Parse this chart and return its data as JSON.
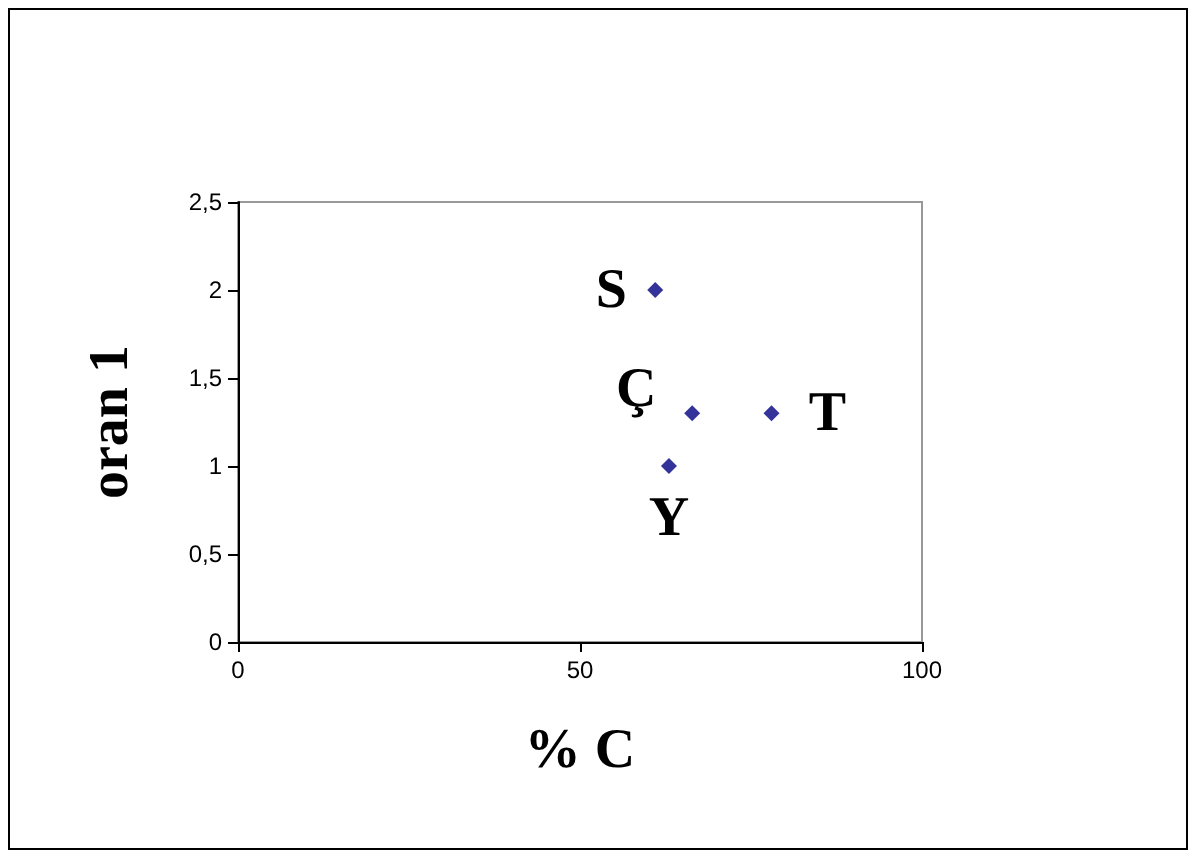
{
  "chart_data": {
    "type": "scatter",
    "xlabel": "% C",
    "ylabel": "oran 1",
    "x": [
      61,
      66.4,
      78,
      63
    ],
    "series": [
      {
        "color": "#000080",
        "values": [
          2,
          1.3,
          1.3,
          1
        ]
      }
    ],
    "xlim": [
      0,
      100
    ],
    "xticks": [
      0,
      50,
      100
    ],
    "ylim": [
      0,
      2.5
    ],
    "yticks": [
      0,
      {
        "value": 0.5,
        "label": "0,5"
      },
      1,
      {
        "value": 1.5,
        "label": "1,5"
      },
      2,
      {
        "value": 2.5,
        "label": "2,5"
      }
    ],
    "annotations": [
      {
        "text": "S",
        "x": 61,
        "y": 2
      },
      {
        "text": "Ç",
        "x": 66.4,
        "y": 1.3
      },
      {
        "text": "T",
        "x": 78,
        "y": 1.3
      },
      {
        "text": "Y",
        "x": 63,
        "y": 1
      }
    ],
    "marker": "diamond",
    "grid": false
  }
}
